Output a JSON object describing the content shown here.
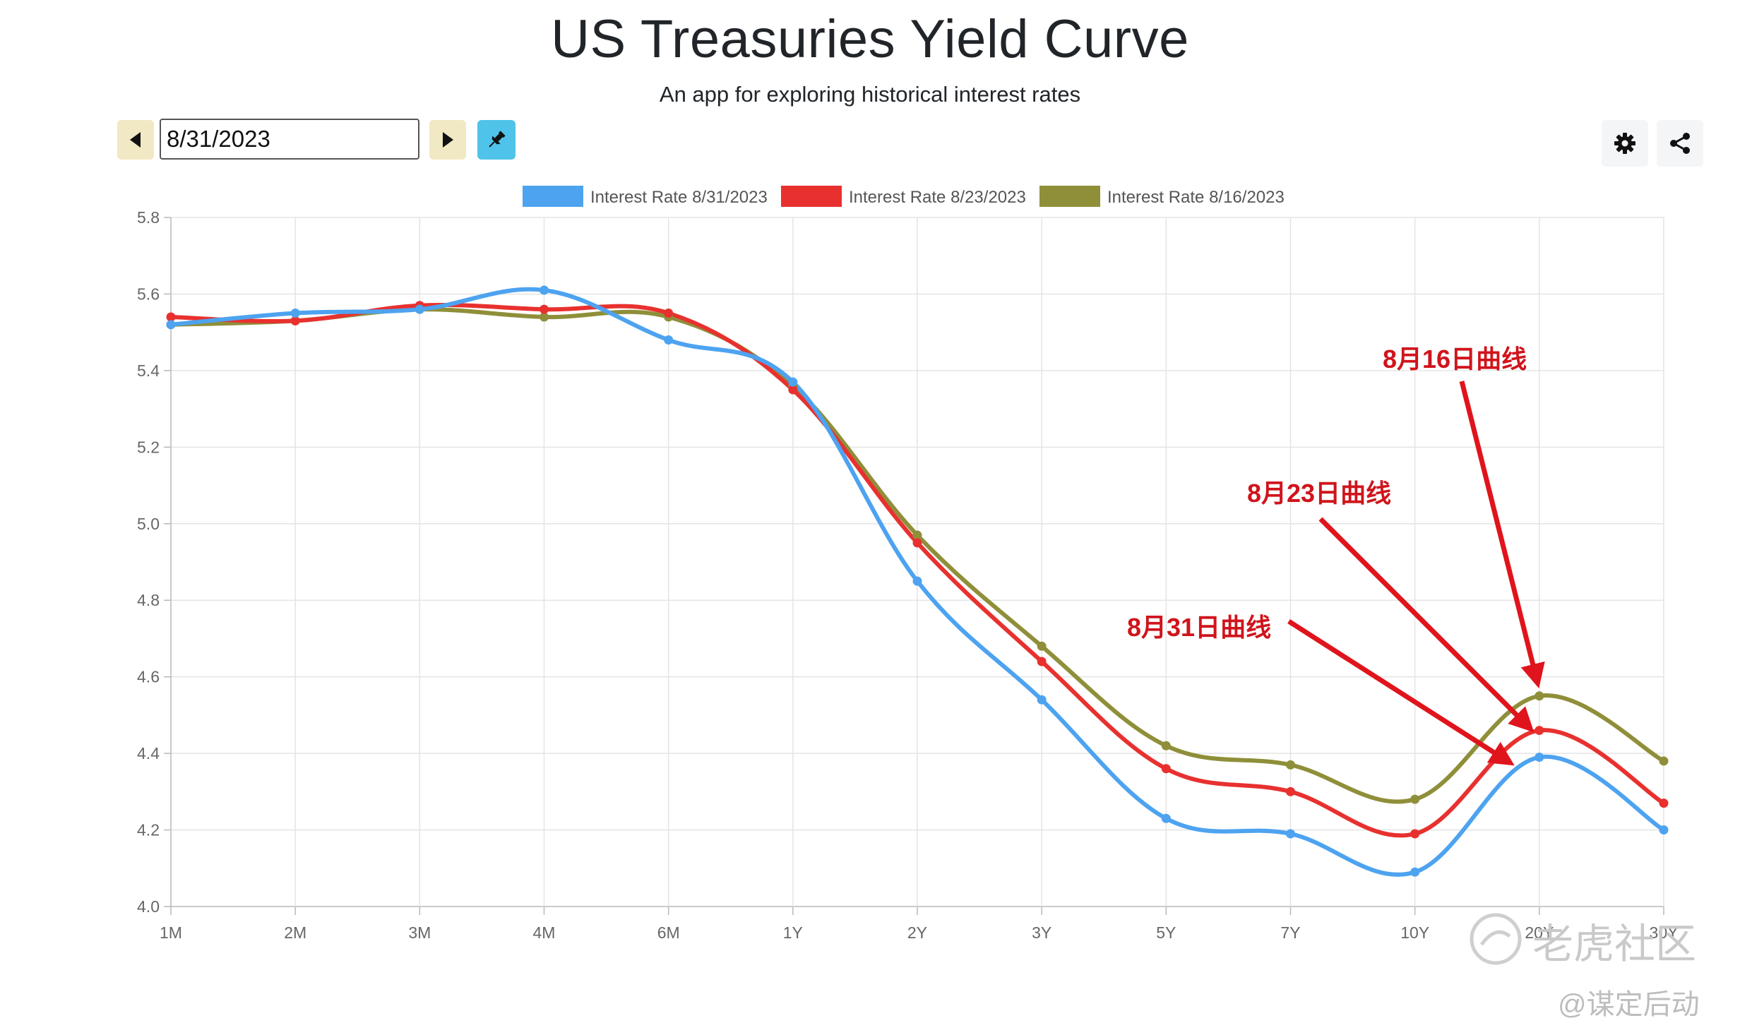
{
  "header": {
    "title": "US Treasuries Yield Curve",
    "subtitle": "An app for exploring historical interest rates"
  },
  "controls": {
    "date_value": "8/31/2023",
    "prev_icon": "caret-left-icon",
    "next_icon": "caret-right-icon",
    "pin_icon": "pin-icon",
    "settings_icon": "gear-icon",
    "share_icon": "share-icon"
  },
  "colors": {
    "series_blue": "#4da3f0",
    "series_red": "#e8312f",
    "series_olive": "#8f8f3a",
    "annotation": "#d0141c"
  },
  "annotations": {
    "a16": "8月16日曲线",
    "a23": "8月23日曲线",
    "a31": "8月31日曲线"
  },
  "watermark": {
    "brand": "老虎社区",
    "author": "@谋定后动"
  },
  "chart_data": {
    "type": "line",
    "categories": [
      "1M",
      "2M",
      "3M",
      "4M",
      "6M",
      "1Y",
      "2Y",
      "3Y",
      "5Y",
      "7Y",
      "10Y",
      "20Y",
      "30Y"
    ],
    "ylim": [
      4.0,
      5.8
    ],
    "yticks": [
      4.0,
      4.2,
      4.4,
      4.6,
      4.8,
      5.0,
      5.2,
      5.4,
      5.6,
      5.8
    ],
    "grid": true,
    "legend_position": "top",
    "series": [
      {
        "name": "Interest Rate 8/31/2023",
        "color": "#4da3f0",
        "values": [
          5.52,
          5.55,
          5.56,
          5.61,
          5.48,
          5.37,
          4.85,
          4.54,
          4.23,
          4.19,
          4.09,
          4.39,
          4.2
        ]
      },
      {
        "name": "Interest Rate 8/23/2023",
        "color": "#e8312f",
        "values": [
          5.54,
          5.53,
          5.57,
          5.56,
          5.55,
          5.35,
          4.95,
          4.64,
          4.36,
          4.3,
          4.19,
          4.46,
          4.27
        ]
      },
      {
        "name": "Interest Rate 8/16/2023",
        "color": "#8f8f3a",
        "values": [
          5.52,
          5.53,
          5.56,
          5.54,
          5.54,
          5.36,
          4.97,
          4.68,
          4.42,
          4.37,
          4.28,
          4.55,
          4.38
        ]
      }
    ]
  }
}
